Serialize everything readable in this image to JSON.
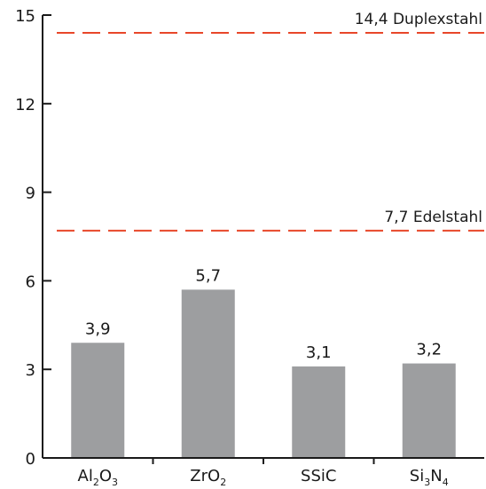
{
  "chart_data": {
    "type": "bar",
    "categories": [
      {
        "id": "al2o3",
        "parts": [
          [
            "Al",
            ""
          ],
          [
            "2",
            "sub"
          ],
          [
            "O",
            ""
          ],
          [
            "3",
            "sub"
          ]
        ]
      },
      {
        "id": "zro2",
        "parts": [
          [
            "ZrO",
            ""
          ],
          [
            "2",
            "sub"
          ]
        ]
      },
      {
        "id": "ssic",
        "parts": [
          [
            "SSiC",
            ""
          ]
        ]
      },
      {
        "id": "si3n4",
        "parts": [
          [
            "Si",
            ""
          ],
          [
            "3",
            "sub"
          ],
          [
            "N",
            ""
          ],
          [
            "4",
            "sub"
          ]
        ]
      }
    ],
    "values": [
      3.9,
      5.7,
      3.1,
      3.2
    ],
    "value_labels": [
      "3,9",
      "5,7",
      "3,1",
      "3,2"
    ],
    "ylim": [
      0,
      15
    ],
    "yticks": [
      0,
      3,
      6,
      9,
      12,
      15
    ],
    "ytick_labels": [
      "0",
      "3",
      "6",
      "9",
      "12",
      "15"
    ],
    "reference_lines": [
      {
        "value": 14.4,
        "label": "14,4 Duplexstahl"
      },
      {
        "value": 7.7,
        "label": "7,7 Edelstahl"
      }
    ],
    "colors": {
      "bar": "#9d9ea0",
      "reference": "#e8472a",
      "axis": "#1a1a1a"
    }
  }
}
